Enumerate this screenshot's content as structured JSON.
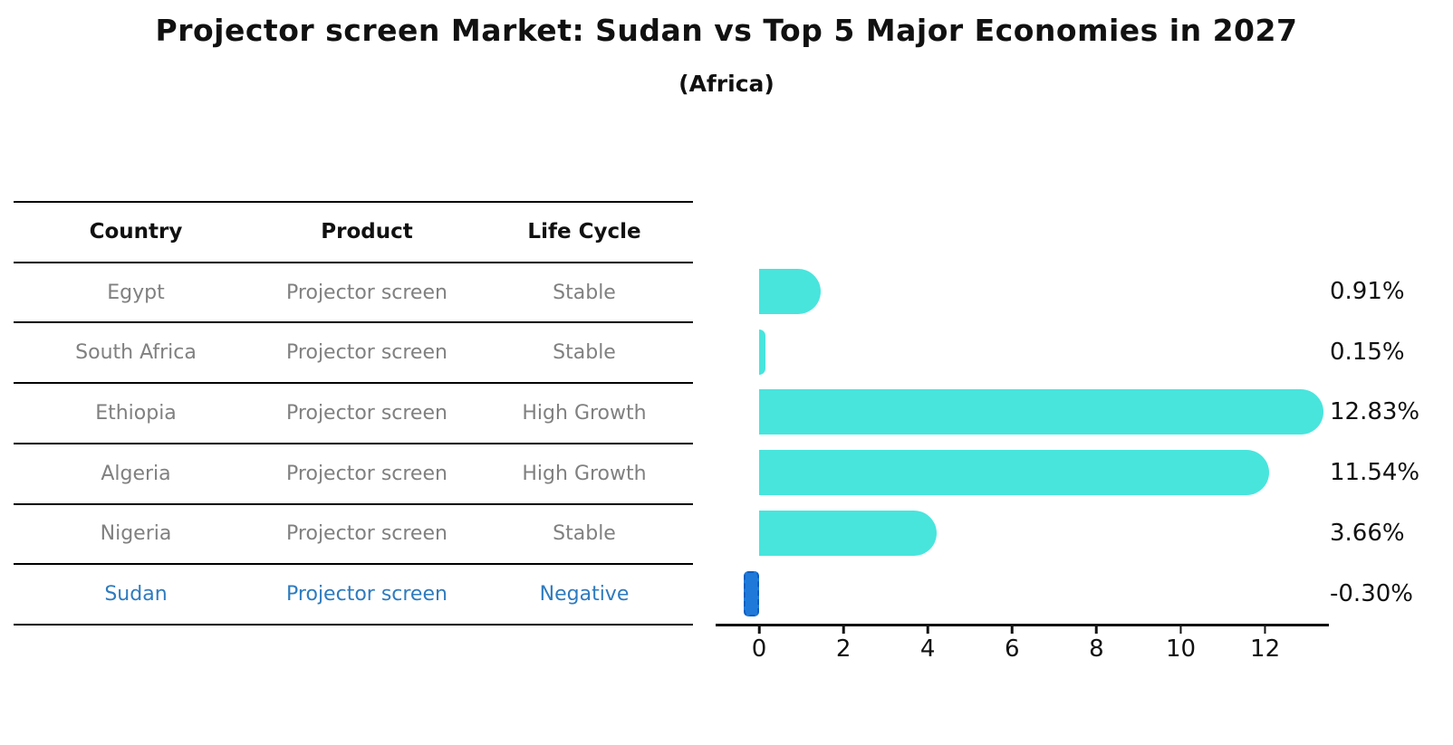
{
  "chart_data": {
    "type": "bar",
    "orientation": "horizontal",
    "title": "Projector screen Market: Sudan vs Top 5 Major Economies in 2027",
    "subtitle": "(Africa)",
    "categories": [
      "Egypt",
      "South Africa",
      "Ethiopia",
      "Algeria",
      "Nigeria",
      "Sudan"
    ],
    "values": [
      0.91,
      0.15,
      12.83,
      11.54,
      3.66,
      -0.3
    ],
    "value_labels": [
      "0.91%",
      "0.15%",
      "12.83%",
      "11.54%",
      "3.66%",
      "-0.30%"
    ],
    "x_ticks": [
      0,
      2,
      4,
      6,
      8,
      10,
      12
    ],
    "xlim": [
      -1.0,
      13.5
    ],
    "xlabel": "",
    "ylabel": "",
    "grid": false,
    "legend": false,
    "bar_color": "#48e5dd",
    "highlight_color": "#1f79d9",
    "highlight_category": "Sudan"
  },
  "table": {
    "headers": [
      "Country",
      "Product",
      "Life Cycle"
    ],
    "rows": [
      {
        "country": "Egypt",
        "product": "Projector screen",
        "life_cycle": "Stable",
        "highlight": false
      },
      {
        "country": "South Africa",
        "product": "Projector screen",
        "life_cycle": "Stable",
        "highlight": false
      },
      {
        "country": "Ethiopia",
        "product": "Projector screen",
        "life_cycle": "High Growth",
        "highlight": false
      },
      {
        "country": "Algeria",
        "product": "Projector screen",
        "life_cycle": "High Growth",
        "highlight": false
      },
      {
        "country": "Nigeria",
        "product": "Projector screen",
        "life_cycle": "Stable",
        "highlight": false
      },
      {
        "country": "Sudan",
        "product": "Projector screen",
        "life_cycle": "Negative",
        "highlight": true
      }
    ]
  },
  "colors": {
    "bar": "#48e5dd",
    "negative_bar": "#1f79d9",
    "negative_bar_edge": "#0d5ec0",
    "highlight_text": "#2e7bbf",
    "table_text": "#808080",
    "heading_text": "#111111"
  }
}
